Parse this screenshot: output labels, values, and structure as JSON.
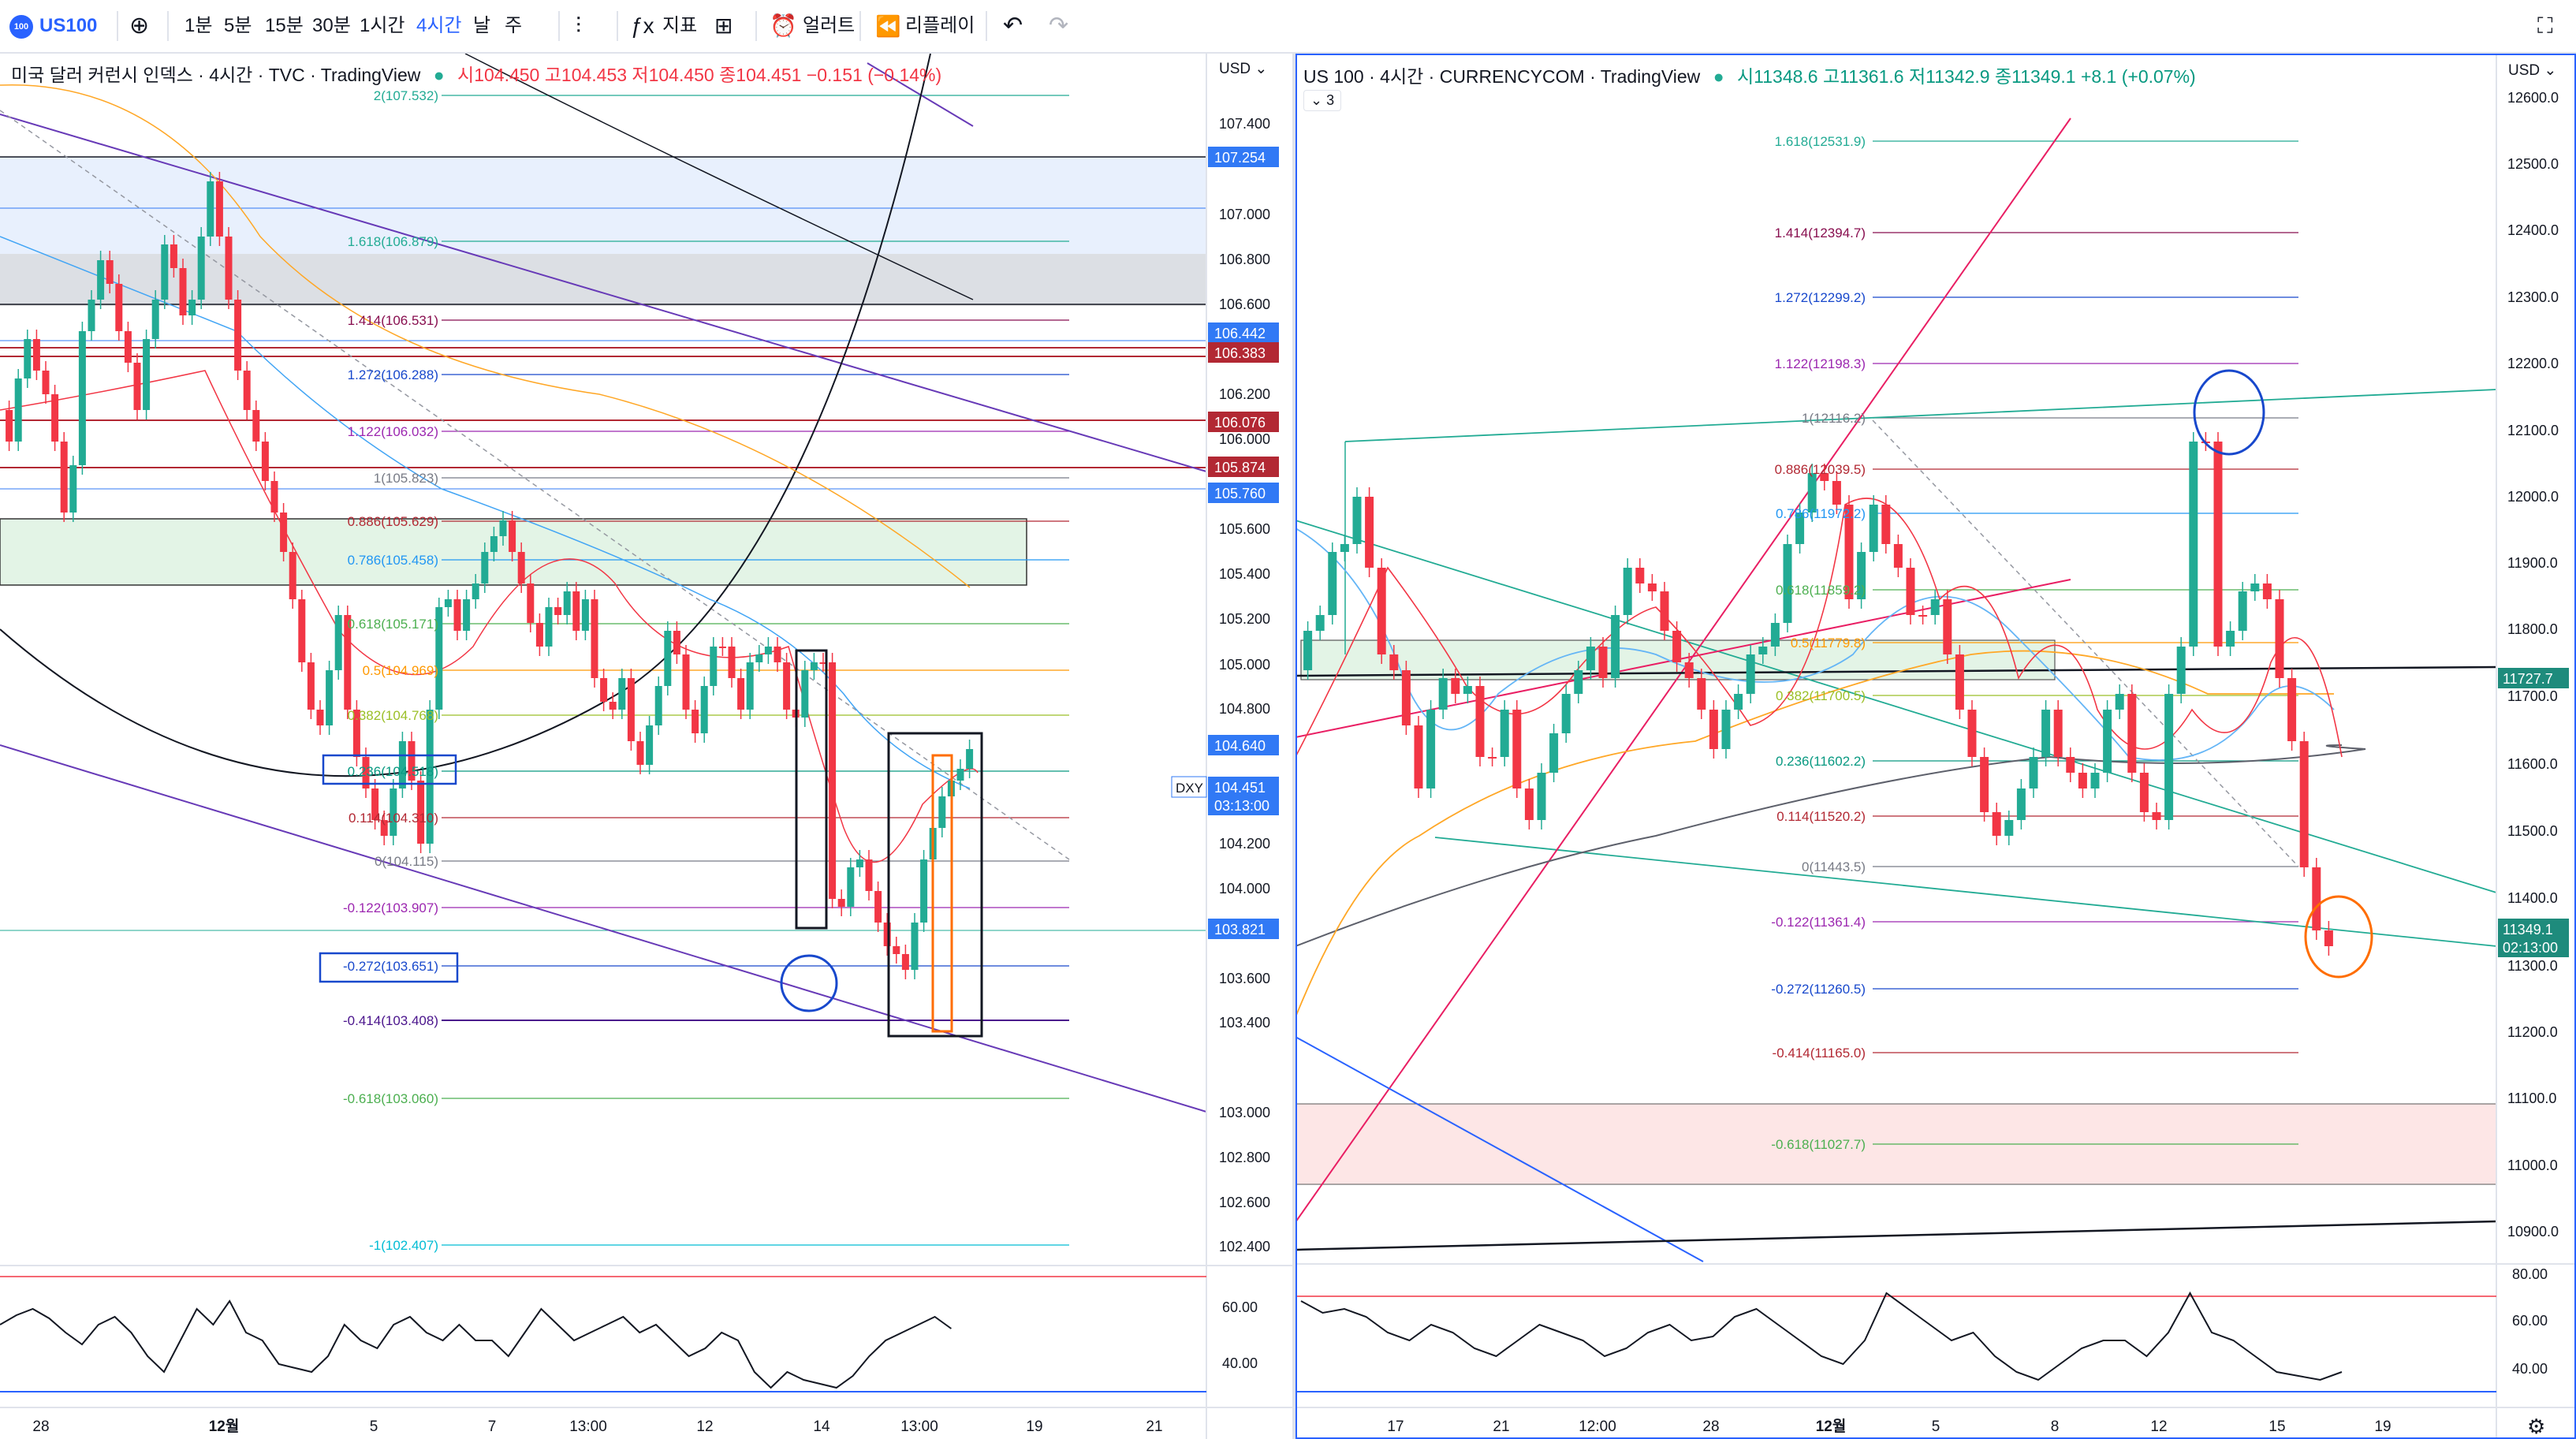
{
  "toolbar": {
    "symbol": "US100",
    "logo": "100",
    "timeframes": [
      "1분",
      "5분",
      "15분",
      "30분",
      "1시간",
      "4시간",
      "날",
      "주"
    ],
    "active_timeframe": "4시간",
    "indicators_label": "지표",
    "alerts_label": "얼러트",
    "replay_label": "리플레이"
  },
  "left": {
    "legend": {
      "title": "미국 달러 커런시 인덱스 · 4시간 · TVC · TradingView",
      "ohlc": "시104.450  고104.453  저104.450  종104.451",
      "change": "−0.151 (−0.14%)"
    },
    "currency": "USD",
    "price_ticks": [
      "107.400",
      "107.000",
      "106.800",
      "106.600",
      "106.200",
      "106.000",
      "105.600",
      "105.400",
      "105.200",
      "105.000",
      "104.800",
      "104.200",
      "104.000",
      "103.600",
      "103.400",
      "103.000",
      "102.800",
      "102.600",
      "102.400"
    ],
    "price_tags": [
      {
        "label": "107.254",
        "color": "#3179f5"
      },
      {
        "label": "106.442",
        "color": "#3179f5"
      },
      {
        "label": "106.383",
        "color": "#b22833"
      },
      {
        "label": "106.076",
        "color": "#b22833"
      },
      {
        "label": "105.874",
        "color": "#b22833"
      },
      {
        "label": "105.760",
        "color": "#3179f5"
      },
      {
        "label": "104.640",
        "color": "#3179f5"
      },
      {
        "label": "104.451",
        "color": "#3179f5"
      },
      {
        "label": "03:13:00",
        "color": "#3179f5"
      },
      {
        "label": "103.821",
        "color": "#3179f5"
      }
    ],
    "symbol_tag": "DXY",
    "fib_labels": [
      "2(107.532)",
      "1.618(106.879)",
      "1.414(106.531)",
      "1.272(106.288)",
      "1.122(106.032)",
      "1(105.823)",
      "0.886(105.629)",
      "0.786(105.458)",
      "0.618(105.171)",
      "0.5(104.969)",
      "0.382(104.768)",
      "0.236(104.518)",
      "0.114(104.310)",
      "0(104.115)",
      "-0.122(103.907)",
      "-0.272(103.651)",
      "-0.414(103.408)",
      "-0.618(103.060)",
      "-1(102.407)"
    ],
    "time_labels": [
      "28",
      "12월",
      "5",
      "7",
      "13:00",
      "12",
      "14",
      "13:00",
      "19",
      "21"
    ],
    "osc_ticks": [
      "60.00",
      "40.00"
    ]
  },
  "right": {
    "legend": {
      "title": "US 100 · 4시간 · CURRENCYCOM · TradingView",
      "ohlc": "시11348.6  고11361.6  저11342.9  종11349.1",
      "change": "+8.1 (+0.07%)",
      "collapsed_count": "3"
    },
    "currency": "USD",
    "price_ticks": [
      "12600.0",
      "12500.0",
      "12400.0",
      "12300.0",
      "12200.0",
      "12100.0",
      "12000.0",
      "11900.0",
      "11800.0",
      "11700.0",
      "11600.0",
      "11500.0",
      "11400.0",
      "11300.0",
      "11200.0",
      "11100.0",
      "11000.0",
      "10900.0"
    ],
    "price_tags": [
      {
        "label": "11727.7",
        "color": "#1e8b7c"
      },
      {
        "label": "11349.1",
        "color": "#1e8b7c"
      },
      {
        "label": "02:13:00",
        "color": "#1e8b7c"
      }
    ],
    "fib_labels": [
      "1.618(12531.9)",
      "1.414(12394.7)",
      "1.272(12299.2)",
      "1.122(12198.3)",
      "1(12116.2)",
      "0.886(12039.5)",
      "0.786(11972.2)",
      "0.618(11859.2)",
      "0.5(11779.8)",
      "0.382(11700.5)",
      "0.236(11602.2)",
      "0.114(11520.2)",
      "0(11443.5)",
      "-0.122(11361.4)",
      "-0.272(11260.5)",
      "-0.414(11165.0)",
      "-0.618(11027.7)"
    ],
    "time_labels": [
      "17",
      "21",
      "12:00",
      "28",
      "12월",
      "5",
      "8",
      "12",
      "15",
      "19"
    ],
    "osc_ticks": [
      "80.00",
      "60.00",
      "40.00"
    ]
  },
  "colors": {
    "up": "#22ab94",
    "down": "#f23645",
    "accent": "#2962ff",
    "blue_line": "#2962ff",
    "purple_line": "#673ab7",
    "pink_line": "#e91e63"
  }
}
